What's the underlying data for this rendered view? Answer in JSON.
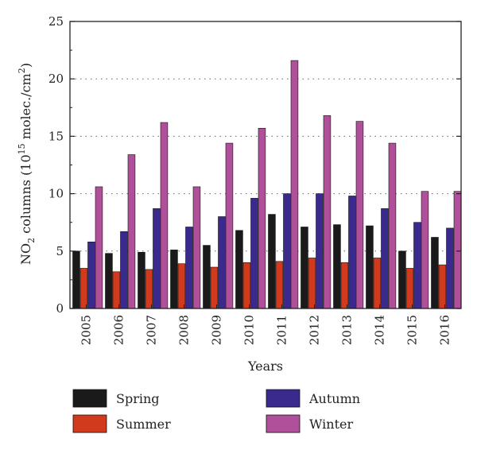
{
  "chart_data": {
    "type": "bar",
    "xlabel": "Years",
    "ylabel_main": "NO",
    "ylabel_sub": "2",
    "ylabel_mid": " columns (10",
    "ylabel_sup1": "15",
    "ylabel_mid2": " molec./cm",
    "ylabel_sup2": "2",
    "ylabel_end": ")",
    "ylim": [
      0,
      25
    ],
    "yticks": [
      "0",
      "5",
      "10",
      "15",
      "20",
      "25"
    ],
    "ytick_values": [
      0,
      5,
      10,
      15,
      20,
      25
    ],
    "grid": "horizontal-dotted",
    "categories": [
      "2005",
      "2006",
      "2007",
      "2008",
      "2009",
      "2010",
      "2011",
      "2012",
      "2013",
      "2014",
      "2015",
      "2016"
    ],
    "series": [
      {
        "name": "Spring",
        "color": "#1a1a1a",
        "values": [
          5.0,
          4.8,
          4.9,
          5.1,
          5.5,
          6.8,
          8.2,
          7.1,
          7.3,
          7.2,
          5.0,
          6.2
        ]
      },
      {
        "name": "Summer",
        "color": "#d23a1e",
        "values": [
          3.5,
          3.2,
          3.4,
          3.9,
          3.6,
          4.0,
          4.1,
          4.4,
          4.0,
          4.4,
          3.5,
          3.8
        ]
      },
      {
        "name": "Autumn",
        "color": "#3b2a8e",
        "values": [
          5.8,
          6.7,
          8.7,
          7.1,
          8.0,
          9.6,
          10.0,
          10.0,
          9.8,
          8.7,
          7.5,
          7.0
        ]
      },
      {
        "name": "Winter",
        "color": "#b0509a",
        "values": [
          10.6,
          13.4,
          16.2,
          10.6,
          14.4,
          15.7,
          21.6,
          16.8,
          16.3,
          14.4,
          10.2,
          10.2
        ]
      }
    ],
    "legend_position": "bottom"
  }
}
